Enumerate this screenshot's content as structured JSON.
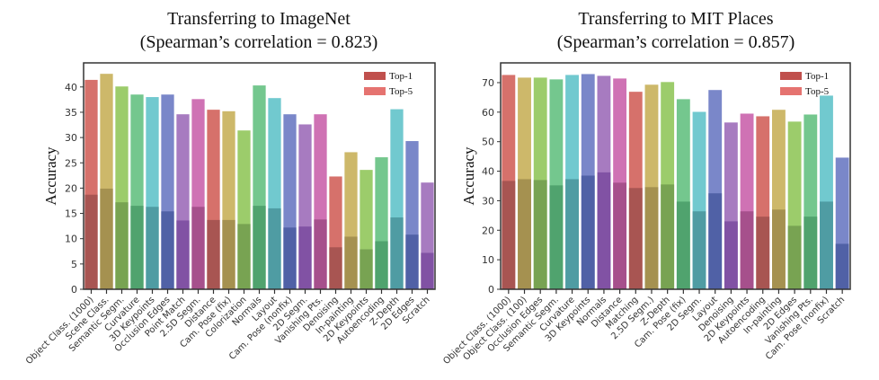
{
  "chart_data": [
    {
      "type": "bar",
      "title": "Transferring to ImageNet",
      "subtitle": "(Spearman’s correlation = 0.823)",
      "xlabel": "",
      "ylabel": "Accuracy",
      "ylim": [
        0,
        44
      ],
      "yticks": [
        0,
        5,
        10,
        15,
        20,
        25,
        30,
        35,
        40
      ],
      "grid": false,
      "legend": {
        "position": "top-right",
        "entries": [
          "Top-1",
          "Top-5"
        ]
      },
      "categories": [
        "Object Class. (1000)",
        "Scene Class.",
        "Semantic Segm.",
        "Curvature",
        "3D Keypoints",
        "Occlusion Edges",
        "Point Match",
        "2.5D Segm.",
        "Distance",
        "Cam. Pose (fix)",
        "Colorization",
        "Normals",
        "Layout",
        "Cam. Pose (nonfix)",
        "2D Segm.",
        "Vanishing Pts.",
        "Denoising",
        "In-painting",
        "2D Keypoints",
        "Autoencoding",
        "Z-Depth",
        "2D Edges",
        "Scratch"
      ],
      "series": [
        {
          "name": "Top-1",
          "values": [
            18.7,
            19.9,
            17.2,
            16.5,
            16.3,
            15.4,
            13.6,
            16.3,
            13.7,
            13.7,
            12.9,
            16.5,
            16.0,
            12.2,
            12.4,
            13.8,
            8.3,
            10.4,
            7.9,
            9.5,
            14.2,
            10.8,
            7.2
          ]
        },
        {
          "name": "Top-5",
          "values": [
            41.4,
            42.6,
            40.1,
            38.5,
            38.0,
            38.5,
            34.6,
            37.6,
            35.5,
            35.2,
            31.4,
            40.3,
            37.8,
            34.6,
            32.6,
            34.6,
            22.3,
            27.1,
            23.6,
            26.1,
            35.6,
            29.3,
            21.1
          ]
        }
      ]
    },
    {
      "type": "bar",
      "title": "Transferring to MIT Places",
      "subtitle": "(Spearman’s correlation = 0.857)",
      "xlabel": "",
      "ylabel": "Accuracy",
      "ylim": [
        0,
        76
      ],
      "yticks": [
        0,
        10,
        20,
        30,
        40,
        50,
        60,
        70
      ],
      "grid": false,
      "legend": {
        "position": "top-right",
        "entries": [
          "Top-1",
          "Top-5"
        ]
      },
      "categories": [
        "Object Class. (1000)",
        "Object Class. (100)",
        "Occlusion Edges",
        "Semantic Segm.",
        "Curvature",
        "3D Keypoints",
        "Normals",
        "Distance",
        "Matching",
        "2.5D Segm.)",
        "Z-Depth",
        "Cam. Pose (fix)",
        "2D Segm.",
        "Layout",
        "Denoising",
        "2D Keypoints",
        "Autoencoding",
        "In-painting",
        "2D Edges",
        "Vanishing Pts.",
        "Cam. Pose (nonfix)",
        "Scratch"
      ],
      "series": [
        {
          "name": "Top-1",
          "values": [
            36.7,
            37.3,
            37.0,
            35.2,
            37.3,
            38.5,
            39.6,
            36.1,
            34.3,
            34.6,
            35.5,
            29.7,
            26.4,
            32.5,
            23.0,
            26.4,
            24.6,
            27.0,
            21.5,
            24.6,
            29.7,
            15.4
          ]
        },
        {
          "name": "Top-5",
          "values": [
            72.6,
            71.7,
            71.7,
            71.1,
            72.6,
            72.9,
            72.3,
            71.4,
            66.9,
            69.3,
            70.2,
            64.4,
            60.1,
            67.5,
            56.5,
            59.5,
            58.6,
            60.8,
            56.8,
            59.2,
            65.6,
            44.6
          ]
        }
      ]
    }
  ],
  "palette": {
    "top5": [
      "#d6716b",
      "#cdb86a",
      "#9ccc6b",
      "#74c78e",
      "#71c9cf",
      "#7a87c9",
      "#a77bc0",
      "#cf72b4"
    ],
    "top1": [
      "#a85552",
      "#a59150",
      "#78a352",
      "#50a36e",
      "#4f9ca3",
      "#5061a6",
      "#8152a4",
      "#a6508c"
    ],
    "legend_top1": "#c0504d",
    "legend_top5": "#e57370"
  }
}
